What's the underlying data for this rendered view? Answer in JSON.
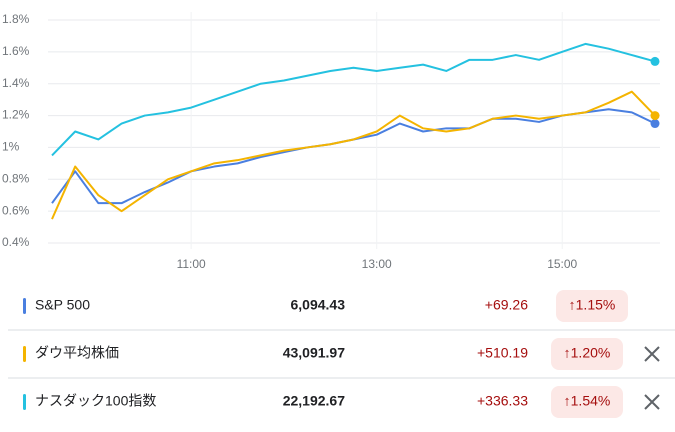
{
  "chart_data": {
    "type": "line",
    "x": [
      9.5,
      9.75,
      10,
      10.25,
      10.5,
      10.75,
      11,
      11.25,
      11.5,
      11.75,
      12,
      12.25,
      12.5,
      12.75,
      13,
      13.25,
      13.5,
      13.75,
      14,
      14.25,
      14.5,
      14.75,
      15,
      15.25,
      15.5,
      15.75,
      16
    ],
    "series": [
      {
        "name": "S&P 500",
        "color": "#4a7fe0",
        "values": [
          0.65,
          0.85,
          0.65,
          0.65,
          0.72,
          0.78,
          0.85,
          0.88,
          0.9,
          0.94,
          0.97,
          1.0,
          1.02,
          1.05,
          1.08,
          1.15,
          1.1,
          1.12,
          1.12,
          1.18,
          1.18,
          1.16,
          1.2,
          1.22,
          1.24,
          1.22,
          1.15
        ]
      },
      {
        "name": "ダウ平均株価",
        "color": "#f4b400",
        "values": [
          0.55,
          0.88,
          0.7,
          0.6,
          0.7,
          0.8,
          0.85,
          0.9,
          0.92,
          0.95,
          0.98,
          1.0,
          1.02,
          1.05,
          1.1,
          1.2,
          1.12,
          1.1,
          1.12,
          1.18,
          1.2,
          1.18,
          1.2,
          1.22,
          1.28,
          1.35,
          1.2
        ]
      },
      {
        "name": "ナスダック100指数",
        "color": "#24c1e0",
        "values": [
          0.95,
          1.1,
          1.05,
          1.15,
          1.2,
          1.22,
          1.25,
          1.3,
          1.35,
          1.4,
          1.42,
          1.45,
          1.48,
          1.5,
          1.48,
          1.5,
          1.52,
          1.48,
          1.55,
          1.55,
          1.58,
          1.55,
          1.6,
          1.65,
          1.62,
          1.58,
          1.54
        ]
      }
    ],
    "xlim": [
      9.5,
      16
    ],
    "xticks": [
      {
        "value": 11,
        "label": "11:00"
      },
      {
        "value": 13,
        "label": "13:00"
      },
      {
        "value": 15,
        "label": "15:00"
      }
    ],
    "ylim": [
      0.4,
      1.8
    ],
    "yticks": [
      {
        "value": 0.4,
        "label": "0.4%"
      },
      {
        "value": 0.6,
        "label": "0.6%"
      },
      {
        "value": 0.8,
        "label": "0.8%"
      },
      {
        "value": 1,
        "label": "1%"
      },
      {
        "value": 1.2,
        "label": "1.2%"
      },
      {
        "value": 1.4,
        "label": "1.4%"
      },
      {
        "value": 1.6,
        "label": "1.6%"
      },
      {
        "value": 1.8,
        "label": "1.8%"
      }
    ],
    "grid": true
  },
  "table": {
    "rows": [
      {
        "price": "6,094.43",
        "change": "+69.26",
        "percent": "↑1.15%"
      },
      {
        "price": "43,091.97",
        "change": "+510.19",
        "percent": "↑1.20%"
      },
      {
        "price": "22,192.67",
        "change": "+336.33",
        "percent": "↑1.54%"
      }
    ]
  }
}
